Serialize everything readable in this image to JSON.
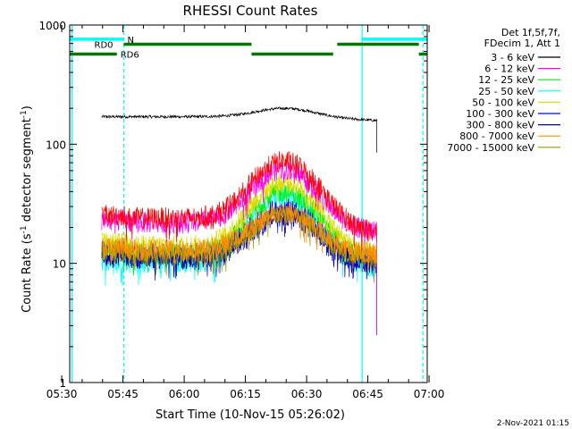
{
  "chart_data": {
    "type": "line",
    "title": "RHESSI Count Rates",
    "xlabel": "Start Time (10-Nov-15 05:26:02)",
    "ylabel_main": "Count Rate (s",
    "ylabel_sup1": "-1",
    "ylabel_mid": " detector segment",
    "ylabel_sup2": "-1",
    "ylabel_close": ")",
    "yscale": "log",
    "ylim": [
      1,
      1000
    ],
    "xlim_minutes": [
      5.95,
      93.55
    ],
    "x_ticks": [
      {
        "minute": 4,
        "label": "05:30"
      },
      {
        "minute": 19,
        "label": "05:45"
      },
      {
        "minute": 34,
        "label": "06:00"
      },
      {
        "minute": 49,
        "label": "06:15"
      },
      {
        "minute": 64,
        "label": "06:30"
      },
      {
        "minute": 79,
        "label": "06:45"
      },
      {
        "minute": 94,
        "label": "07:00"
      }
    ],
    "y_ticks": [
      {
        "value": 1,
        "label": "1"
      },
      {
        "value": 10,
        "label": "10"
      },
      {
        "value": 100,
        "label": "100"
      },
      {
        "value": 1000,
        "label": "1000"
      }
    ],
    "timestamp": "2-Nov-2021 01:15",
    "legend_header": [
      "Det 1f,5f,7f,",
      "FDecim 1, Att 1"
    ],
    "series": [
      {
        "name": "3 - 6 keV",
        "color": "#000000",
        "base": 170,
        "peak": 200,
        "end": 158
      },
      {
        "name": "6 - 12 keV",
        "color": "#ff00ff",
        "base": 22,
        "peak": 62,
        "end": 18
      },
      {
        "name": "12 - 25 keV",
        "color": "#00ee00",
        "base": 12,
        "peak": 40,
        "end": 11
      },
      {
        "name": "25 - 50 keV",
        "color": "#00ffff",
        "base": 10,
        "peak": 37,
        "end": 9
      },
      {
        "name": "50 - 100 keV",
        "color": "#dddd00",
        "base": 14,
        "peak": 48,
        "end": 12
      },
      {
        "name": "100 - 300 keV",
        "color": "#0000ff",
        "base": 12,
        "peak": 29,
        "end": 10
      },
      {
        "name": "300 - 800 keV",
        "color": "#0000a0",
        "base": 11,
        "peak": 25,
        "end": 10
      },
      {
        "name": "800 - 7000 keV",
        "color": "#ff8c00",
        "base": 13,
        "peak": 27,
        "end": 12
      },
      {
        "name": "7000 - 15000 keV",
        "color": "#999900",
        "base": 12,
        "peak": 26,
        "end": 11
      },
      {
        "name": "",
        "color": "#ff0000",
        "base": 24,
        "peak": 72,
        "end": 18
      }
    ],
    "data_window_minutes": [
      13.8,
      81.2
    ],
    "peak_minute": 58.5,
    "state_bars": [
      {
        "label": "N",
        "color": "#00ffff",
        "segments": [
          [
            5.95,
            19.2
          ],
          [
            77.6,
            93.55
          ]
        ],
        "value": 760
      },
      {
        "label": "RD0",
        "color": "#007700",
        "segments": [
          [
            19.2,
            50.5
          ],
          [
            71.5,
            91.5
          ]
        ],
        "value": 690
      },
      {
        "label": "RD6",
        "color": "#007700",
        "segments": [
          [
            5.95,
            17.5
          ],
          [
            50.5,
            70.5
          ],
          [
            91.5,
            93.55
          ]
        ],
        "value": 570
      }
    ],
    "vlines": [
      {
        "minute": 6.5,
        "color": "#00ffff",
        "style": "solid"
      },
      {
        "minute": 19.2,
        "color": "#00ffff",
        "style": "dashed"
      },
      {
        "minute": 77.6,
        "color": "#00ffff",
        "style": "solid"
      },
      {
        "minute": 92.5,
        "color": "#00ffff",
        "style": "dashed"
      }
    ]
  }
}
